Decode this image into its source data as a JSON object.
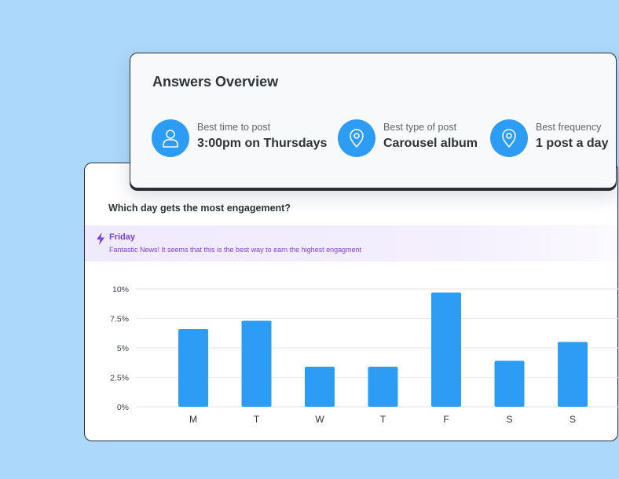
{
  "overview": {
    "title": "Answers Overview",
    "stats": [
      {
        "label": "Best time to post",
        "value": "3:00pm on Thursdays",
        "icon": "user-icon"
      },
      {
        "label": "Best type of post",
        "value": "Carousel album",
        "icon": "location-pin-icon"
      },
      {
        "label": "Best frequency",
        "value": "1 post a day",
        "icon": "location-pin-icon"
      }
    ]
  },
  "engagement": {
    "question": "Which day gets the most engagement?",
    "highlight": {
      "day": "Friday",
      "message": "Fantastic News! It seems that this is the best way to earn the highest engagment",
      "icon": "lightning-icon"
    }
  },
  "colors": {
    "background": "#acd8fb",
    "accent": "#2c9cf5",
    "highlight_text": "#7c3fe0"
  },
  "chart_data": {
    "type": "bar",
    "categories": [
      "M",
      "T",
      "W",
      "T",
      "F",
      "S",
      "S"
    ],
    "values": [
      6.6,
      7.3,
      3.4,
      3.4,
      9.7,
      3.9,
      5.5
    ],
    "yticks": [
      "0%",
      "2.5%",
      "5%",
      "7.5%",
      "10%"
    ],
    "ylim": [
      0,
      10
    ],
    "grid": true,
    "bar_color": "#2c9cf5"
  }
}
